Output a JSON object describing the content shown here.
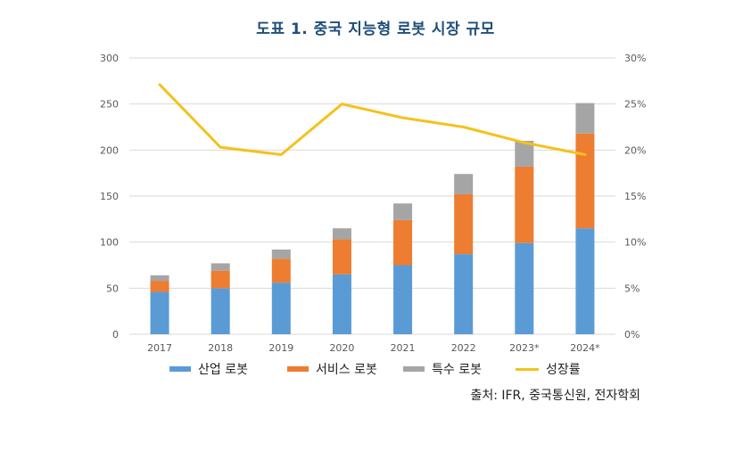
{
  "title": "도표 1. 중국 지능형 로봇 시장 규모",
  "source": "출처: IFR, 중국통신원, 전자학회",
  "colors": {
    "industrial": "#5b9bd5",
    "service": "#ed7d31",
    "special": "#a5a5a5",
    "growth": "#f5c11c",
    "grid": "#d9d9d9",
    "tick": "#595959"
  },
  "chart_data": {
    "type": "bar",
    "stacked": true,
    "categories": [
      "2017",
      "2018",
      "2019",
      "2020",
      "2021",
      "2022",
      "2023*",
      "2024*"
    ],
    "series": [
      {
        "name": "산업 로봇",
        "values": [
          46,
          50,
          56,
          65,
          75,
          87,
          99,
          115
        ]
      },
      {
        "name": "서비스 로봇",
        "values": [
          12,
          19,
          26,
          38,
          49,
          65,
          83,
          103
        ]
      },
      {
        "name": "특수 로봇",
        "values": [
          6,
          8,
          10,
          12,
          18,
          22,
          28,
          33
        ]
      }
    ],
    "line_series": {
      "name": "성장률",
      "axis": "right",
      "values": [
        27.1,
        20.3,
        19.5,
        25.0,
        23.5,
        22.5,
        20.8,
        19.5
      ]
    },
    "ylim": [
      0,
      300
    ],
    "y_ticks": [
      "0",
      "50",
      "100",
      "150",
      "200",
      "250",
      "300"
    ],
    "y2lim": [
      0,
      30
    ],
    "y2_ticks": [
      "0%",
      "5%",
      "10%",
      "15%",
      "20%",
      "25%",
      "30%"
    ],
    "grid": true,
    "legend": "bottom"
  }
}
